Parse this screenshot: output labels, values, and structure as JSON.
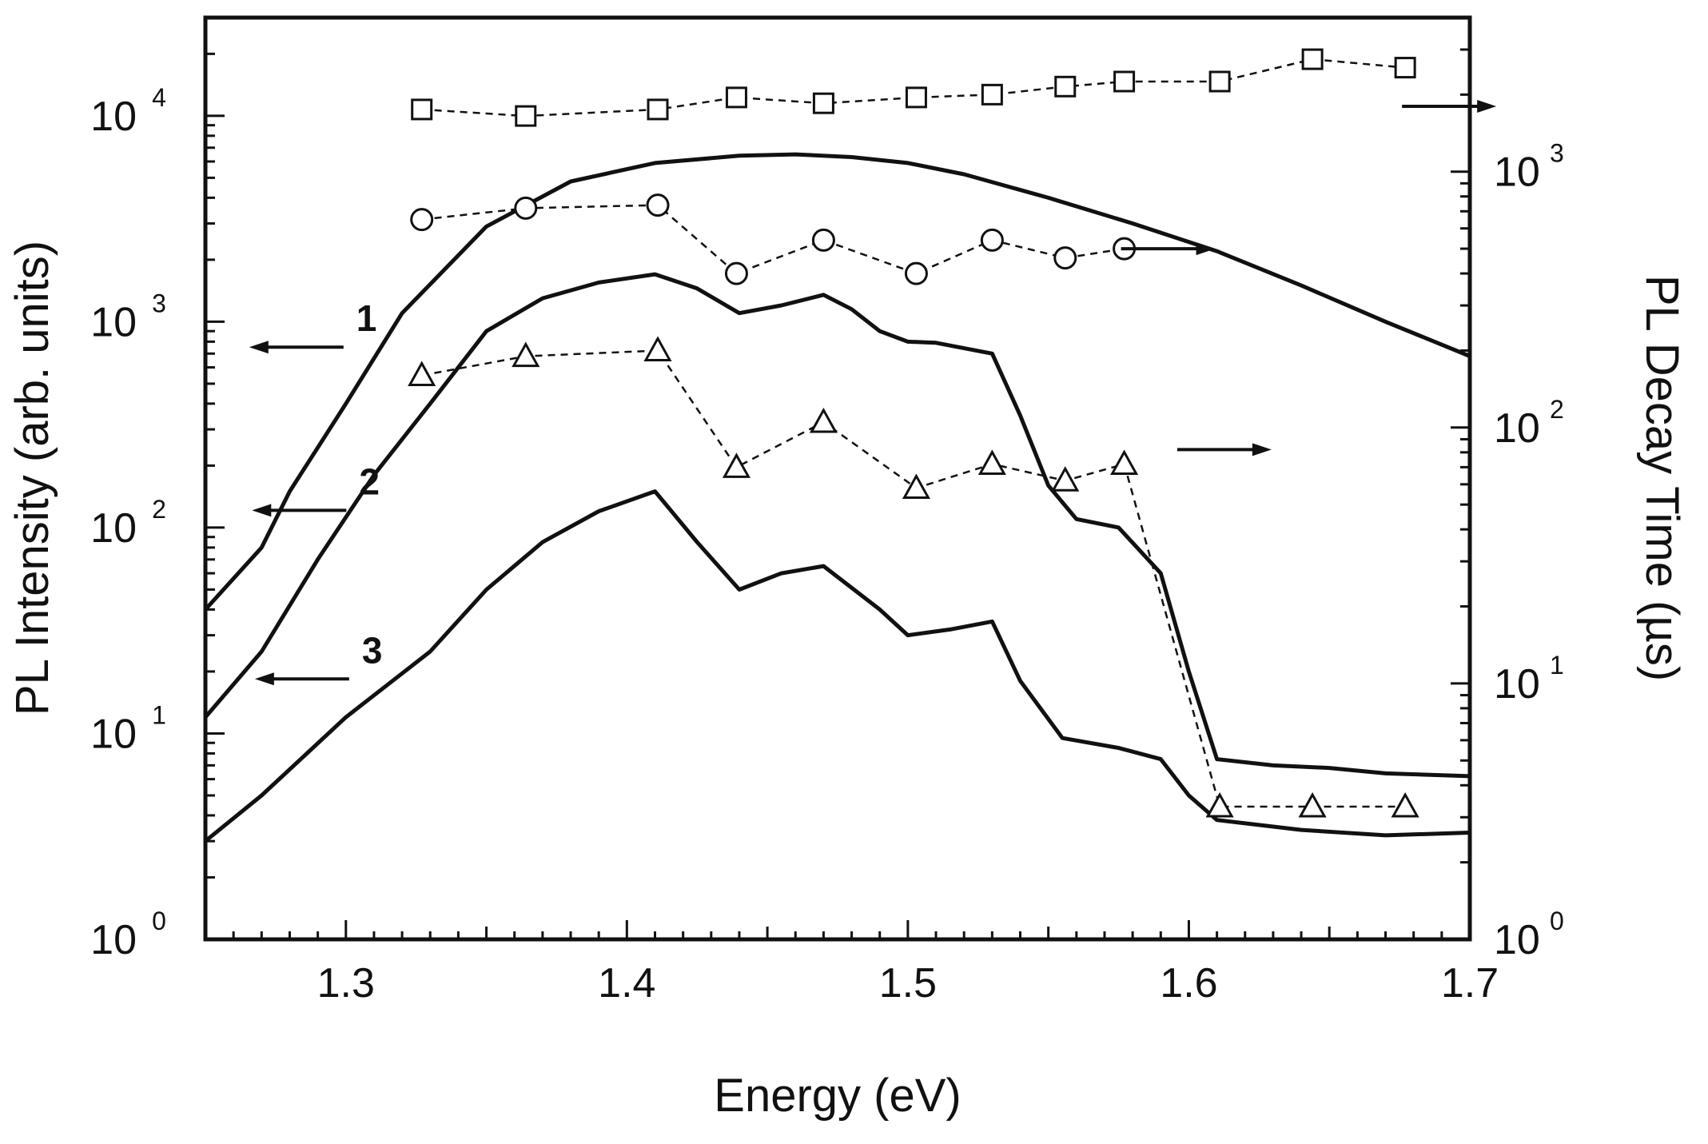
{
  "chart_data": {
    "type": "line",
    "xlabel": "Energy (eV)",
    "ylabel_left": "PL Intensity (arb. units)",
    "ylabel_right": "PL Decay Time (µs)",
    "xlim": [
      1.25,
      1.7
    ],
    "ylim_left": [
      1,
      30000
    ],
    "ylim_right": [
      1,
      4000
    ],
    "yscale": "log",
    "x_ticks": [
      "1.3",
      "1.4",
      "1.5",
      "1.6",
      "1.7"
    ],
    "y_ticks_left": [
      {
        "value": 1,
        "base": "10",
        "exp": "0"
      },
      {
        "value": 10,
        "base": "10",
        "exp": "1"
      },
      {
        "value": 100,
        "base": "10",
        "exp": "2"
      },
      {
        "value": 1000,
        "base": "10",
        "exp": "3"
      },
      {
        "value": 10000,
        "base": "10",
        "exp": "4"
      }
    ],
    "y_ticks_right": [
      {
        "value": 1,
        "base": "10",
        "exp": "0"
      },
      {
        "value": 10,
        "base": "10",
        "exp": "1"
      },
      {
        "value": 100,
        "base": "10",
        "exp": "2"
      },
      {
        "value": 1000,
        "base": "10",
        "exp": "3"
      }
    ],
    "grid": false,
    "series": [
      {
        "name": "1",
        "axis": "left",
        "style": "solid",
        "x": [
          1.25,
          1.27,
          1.28,
          1.3,
          1.32,
          1.35,
          1.38,
          1.41,
          1.44,
          1.46,
          1.48,
          1.5,
          1.52,
          1.55,
          1.58,
          1.61,
          1.64,
          1.67,
          1.7
        ],
        "y": [
          40,
          80,
          150,
          400,
          1100,
          2900,
          4800,
          5900,
          6400,
          6500,
          6300,
          5900,
          5200,
          4000,
          3000,
          2200,
          1500,
          1000,
          680
        ]
      },
      {
        "name": "2",
        "axis": "left",
        "style": "solid",
        "x": [
          1.25,
          1.27,
          1.29,
          1.31,
          1.33,
          1.35,
          1.37,
          1.39,
          1.41,
          1.425,
          1.44,
          1.455,
          1.47,
          1.48,
          1.49,
          1.5,
          1.51,
          1.53,
          1.54,
          1.55,
          1.56,
          1.575,
          1.59,
          1.6,
          1.61,
          1.63,
          1.65,
          1.67,
          1.7
        ],
        "y": [
          12,
          25,
          70,
          180,
          400,
          900,
          1300,
          1550,
          1700,
          1450,
          1100,
          1200,
          1350,
          1150,
          900,
          800,
          790,
          700,
          350,
          160,
          110,
          100,
          60,
          20,
          7.5,
          7,
          6.8,
          6.4,
          6.2
        ]
      },
      {
        "name": "3",
        "axis": "left",
        "style": "solid",
        "x": [
          1.25,
          1.27,
          1.3,
          1.33,
          1.35,
          1.37,
          1.39,
          1.41,
          1.425,
          1.44,
          1.455,
          1.47,
          1.49,
          1.5,
          1.515,
          1.53,
          1.54,
          1.555,
          1.575,
          1.59,
          1.6,
          1.61,
          1.64,
          1.67,
          1.7
        ],
        "y": [
          3,
          5,
          12,
          25,
          50,
          85,
          120,
          150,
          85,
          50,
          60,
          65,
          40,
          30,
          32,
          35,
          18,
          9.5,
          8.5,
          7.5,
          5,
          3.8,
          3.4,
          3.2,
          3.3
        ]
      },
      {
        "name": "squares",
        "axis": "right",
        "style": "dashed",
        "marker": "square",
        "x": [
          1.327,
          1.364,
          1.411,
          1.439,
          1.47,
          1.503,
          1.53,
          1.556,
          1.577,
          1.611,
          1.644,
          1.677
        ],
        "y": [
          1750,
          1650,
          1750,
          1950,
          1850,
          1950,
          2000,
          2150,
          2250,
          2250,
          2750,
          2550
        ]
      },
      {
        "name": "circles",
        "axis": "right",
        "style": "dashed",
        "marker": "circle",
        "x": [
          1.327,
          1.364,
          1.411,
          1.439,
          1.47,
          1.503,
          1.53,
          1.556,
          1.577
        ],
        "y": [
          650,
          720,
          740,
          400,
          540,
          400,
          540,
          460,
          500
        ]
      },
      {
        "name": "triangles",
        "axis": "right",
        "style": "dashed",
        "marker": "triangle",
        "x": [
          1.327,
          1.364,
          1.411,
          1.439,
          1.47,
          1.503,
          1.53,
          1.556,
          1.577,
          1.611,
          1.644,
          1.677
        ],
        "y": [
          160,
          190,
          200,
          70,
          105,
          58,
          72,
          62,
          72,
          3.3,
          3.3,
          3.3
        ]
      }
    ],
    "annotations": [
      {
        "text": "1",
        "x": 1.302,
        "y": 900,
        "arrow": "left"
      },
      {
        "text": "2",
        "x": 1.303,
        "y": 145,
        "arrow": "left"
      },
      {
        "text": "3",
        "x": 1.304,
        "y": 22,
        "arrow": "left"
      },
      {
        "text": "",
        "x": 1.71,
        "y": 1800,
        "arrow": "right"
      },
      {
        "text": "",
        "x": 1.61,
        "y": 500,
        "arrow": "right"
      },
      {
        "text": "",
        "x": 1.63,
        "y": 82,
        "arrow": "right"
      }
    ]
  }
}
